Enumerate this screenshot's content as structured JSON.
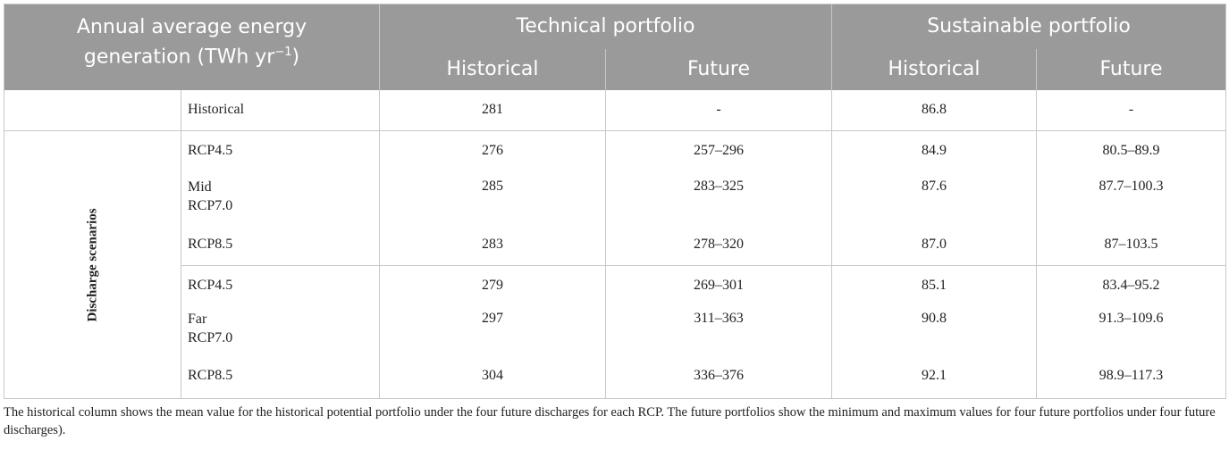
{
  "header": {
    "corner_line1": "Annual average energy",
    "corner_line2_prefix": "generation (TWh yr",
    "corner_sup": "−1",
    "corner_line2_suffix": ")",
    "technical": "Technical portfolio",
    "sustainable": "Sustainable portfolio",
    "sub": [
      "Historical",
      "Future",
      "Historical",
      "Future"
    ]
  },
  "hist_row": {
    "label": "Historical",
    "values": [
      "281",
      "-",
      "86.8",
      "-"
    ]
  },
  "group_label": "Discharge scenarios",
  "rows": [
    {
      "period": "",
      "rcp": "RCP4.5",
      "values": [
        "276",
        "257–296",
        "84.9",
        "80.5–89.9"
      ]
    },
    {
      "period": "Mid",
      "rcp": "RCP7.0",
      "values": [
        "285",
        "283–325",
        "87.6",
        "87.7–100.3"
      ]
    },
    {
      "period": "",
      "rcp": "RCP8.5",
      "values": [
        "283",
        "278–320",
        "87.0",
        "87–103.5"
      ]
    },
    {
      "period": "",
      "rcp": "RCP4.5",
      "values": [
        "279",
        "269–301",
        "85.1",
        "83.4–95.2"
      ]
    },
    {
      "period": "Far",
      "rcp": "RCP7.0",
      "values": [
        "297",
        "311–363",
        "90.8",
        "91.3–109.6"
      ]
    },
    {
      "period": "",
      "rcp": "RCP8.5",
      "values": [
        "304",
        "336–376",
        "92.1",
        "98.9–117.3"
      ]
    }
  ],
  "footnote": "The historical column shows the mean value for the historical potential portfolio under the four future discharges for each RCP. The future portfolios show the minimum and maximum values for four future portfolios under four future discharges)."
}
